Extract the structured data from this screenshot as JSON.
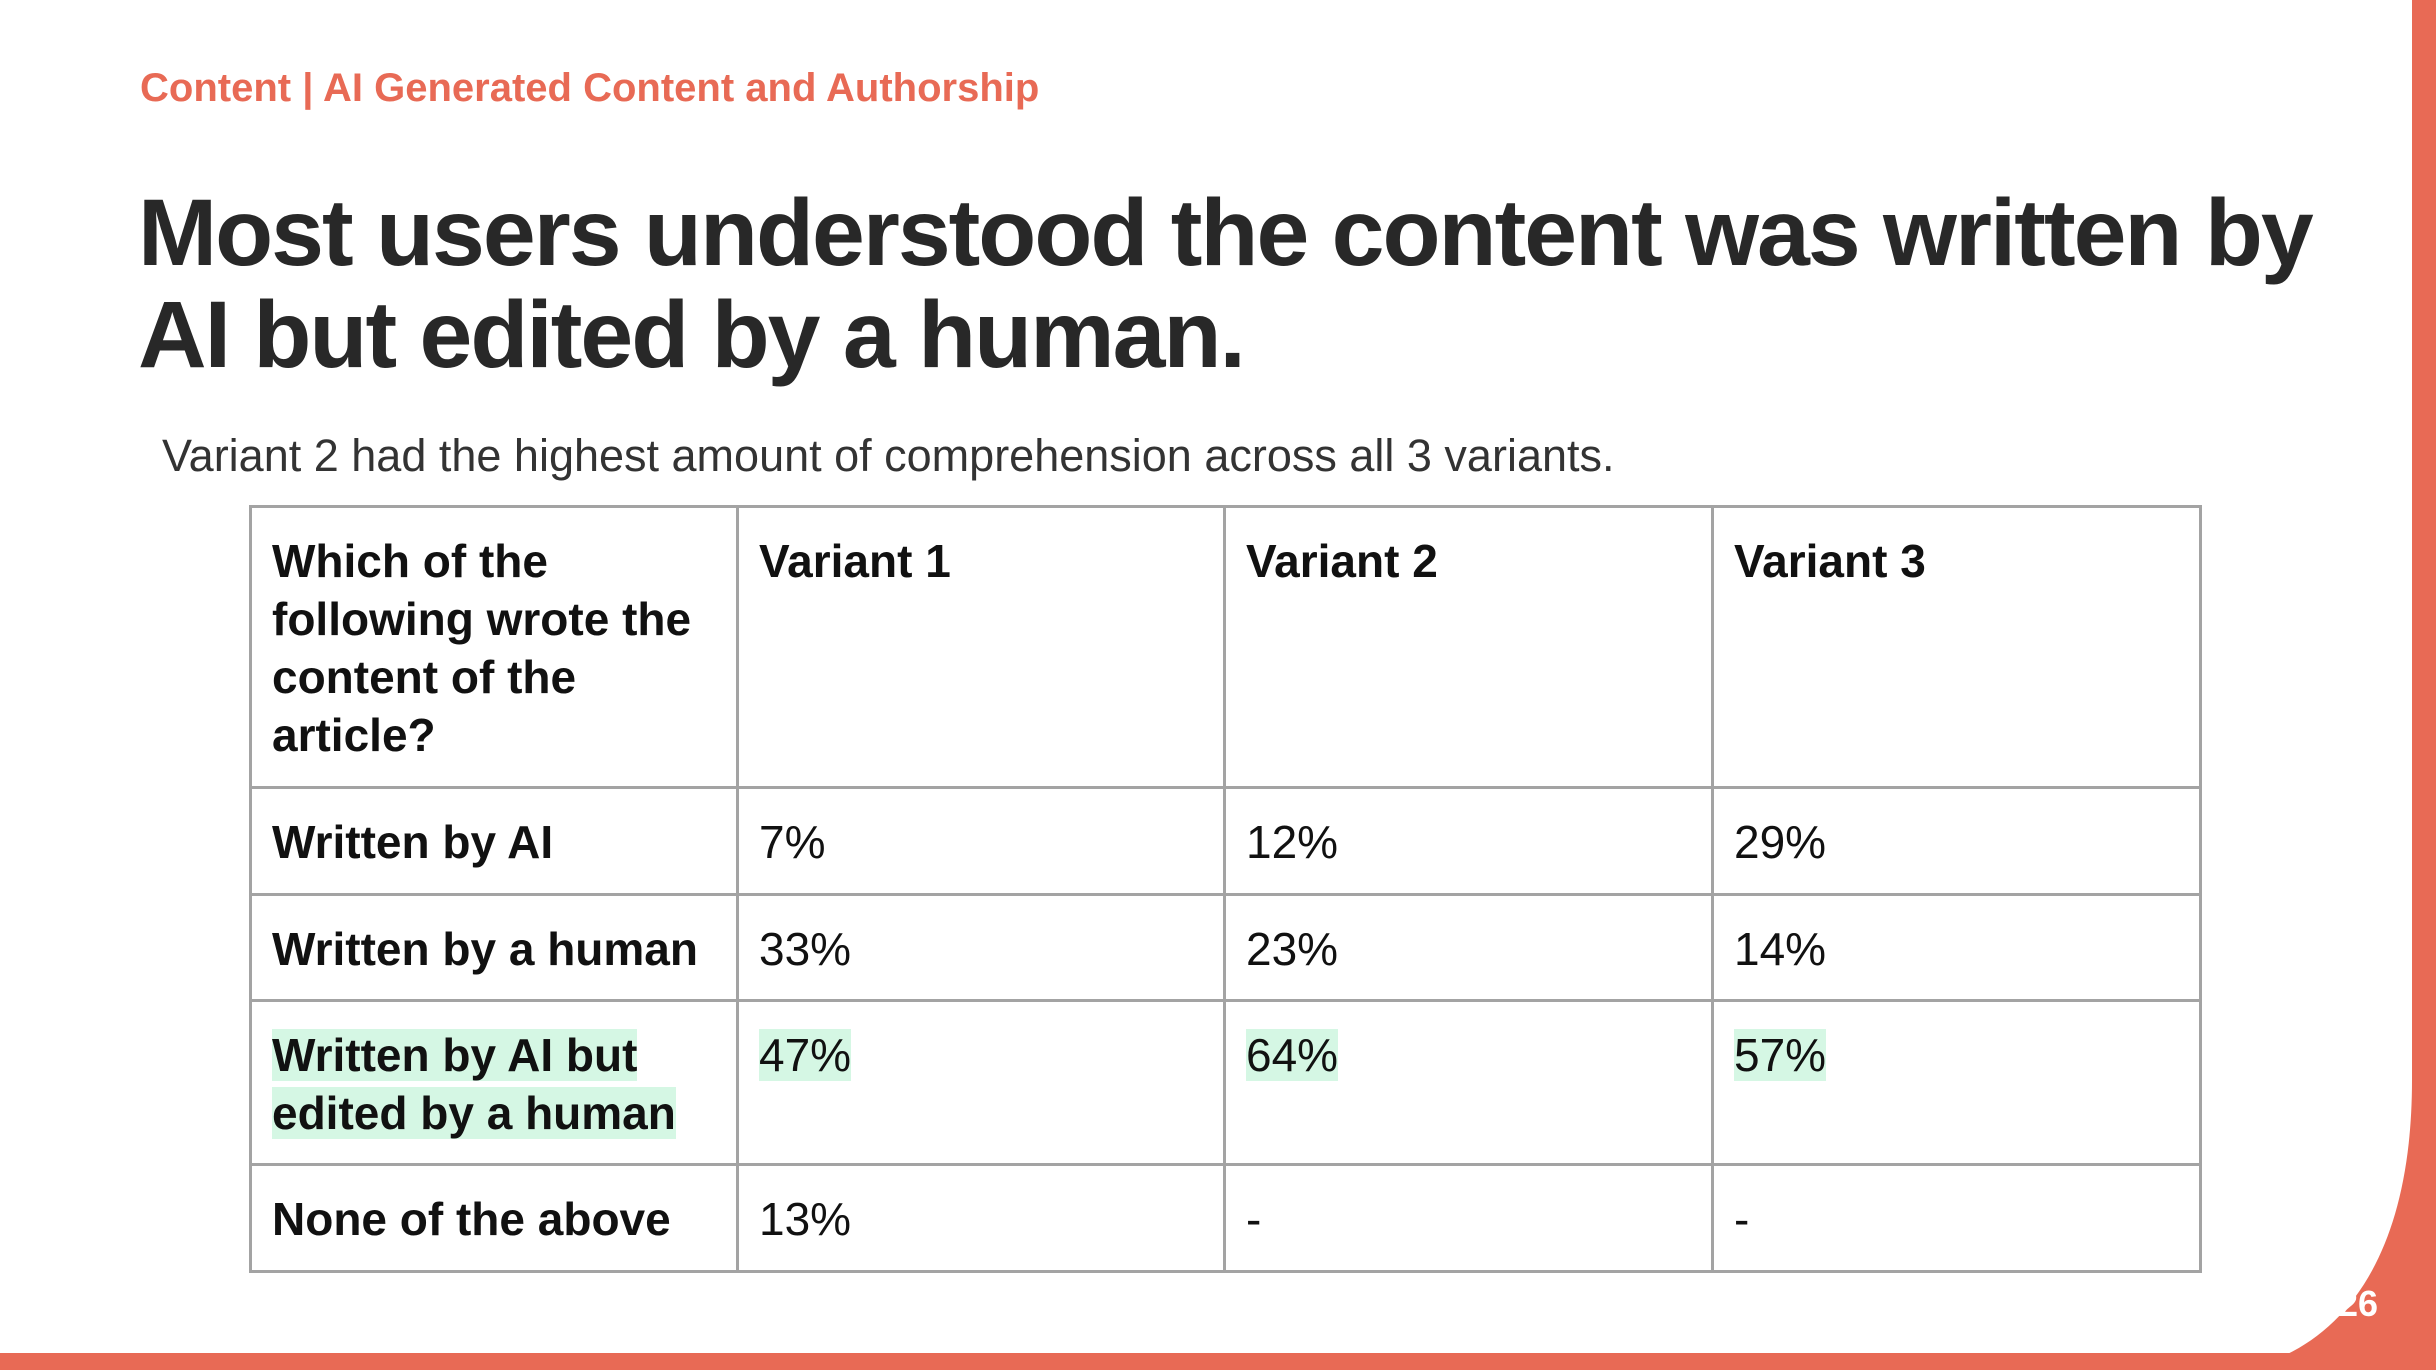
{
  "slide": {
    "breadcrumb": "Content | AI Generated Content and Authorship",
    "title": "Most users understood the content was written by AI but edited by a human.",
    "subtitle": "Variant 2 had the highest amount of comprehension across all 3 variants.",
    "page_number": "26",
    "accent_color": "#e86a55",
    "highlight_color": "#d5f7e4"
  },
  "table": {
    "headers": [
      "Which of the following wrote the content of the article?",
      "Variant 1",
      "Variant 2",
      "Variant 3"
    ],
    "rows": [
      {
        "label": "Written by AI",
        "values": [
          "7%",
          "12%",
          "29%"
        ]
      },
      {
        "label": "Written by a human",
        "values": [
          "33%",
          "23%",
          "14%"
        ]
      },
      {
        "label": "Written by AI but edited by a human",
        "values": [
          "47%",
          "64%",
          "57%"
        ],
        "highlighted": true
      },
      {
        "label": "None of the above",
        "values": [
          "13%",
          "-",
          "-"
        ]
      }
    ]
  }
}
